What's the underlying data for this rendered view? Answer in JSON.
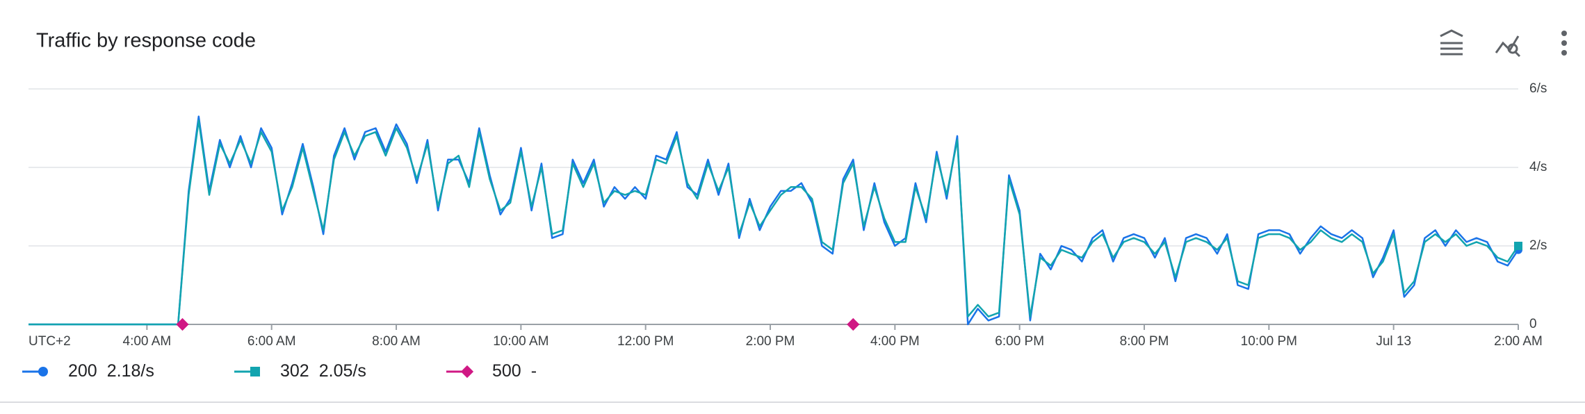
{
  "chart_data": {
    "type": "line",
    "title": "Traffic by response code",
    "timezone": "UTC+2",
    "x": [
      2.1,
      4.5,
      4.67,
      4.83,
      5,
      5.17,
      5.33,
      5.5,
      5.67,
      5.83,
      6,
      6.17,
      6.33,
      6.5,
      6.67,
      6.83,
      7,
      7.17,
      7.33,
      7.5,
      7.67,
      7.83,
      8,
      8.17,
      8.33,
      8.5,
      8.67,
      8.83,
      9,
      9.17,
      9.33,
      9.5,
      9.67,
      9.83,
      10,
      10.17,
      10.33,
      10.5,
      10.67,
      10.83,
      11,
      11.17,
      11.33,
      11.5,
      11.67,
      11.83,
      12,
      12.17,
      12.33,
      12.5,
      12.67,
      12.83,
      13,
      13.17,
      13.33,
      13.5,
      13.67,
      13.83,
      14,
      14.17,
      14.33,
      14.5,
      14.67,
      14.83,
      15,
      15.17,
      15.33,
      15.5,
      15.67,
      15.83,
      16,
      16.17,
      16.33,
      16.5,
      16.67,
      16.83,
      17,
      17.17,
      17.33,
      17.5,
      17.67,
      17.83,
      18,
      18.17,
      18.33,
      18.5,
      18.67,
      18.83,
      19,
      19.17,
      19.33,
      19.5,
      19.67,
      19.83,
      20,
      20.17,
      20.33,
      20.5,
      20.67,
      20.83,
      21,
      21.17,
      21.33,
      21.5,
      21.67,
      21.83,
      22,
      22.17,
      22.33,
      22.5,
      22.67,
      22.83,
      23,
      23.17,
      23.33,
      23.5,
      23.67,
      23.83,
      24,
      24.17,
      24.33,
      24.5,
      24.67,
      24.83,
      25,
      25.17,
      25.33,
      25.5,
      25.67,
      25.83,
      26
    ],
    "series": [
      {
        "name": "200",
        "current": "2.18/s",
        "color": "#1a73e8",
        "marker": "circle",
        "values": [
          0,
          0,
          3.4,
          5.3,
          3.4,
          4.7,
          4.0,
          4.8,
          4.0,
          5.0,
          4.5,
          2.8,
          3.6,
          4.6,
          3.5,
          2.3,
          4.3,
          5.0,
          4.2,
          4.9,
          5.0,
          4.4,
          5.1,
          4.6,
          3.6,
          4.7,
          2.9,
          4.2,
          4.2,
          3.6,
          5.0,
          3.8,
          2.8,
          3.2,
          4.5,
          2.9,
          4.1,
          2.2,
          2.3,
          4.2,
          3.6,
          4.2,
          3.0,
          3.5,
          3.2,
          3.5,
          3.2,
          4.3,
          4.2,
          4.9,
          3.5,
          3.3,
          4.2,
          3.3,
          4.1,
          2.2,
          3.2,
          2.4,
          3.0,
          3.4,
          3.4,
          3.6,
          3.1,
          2.0,
          1.8,
          3.7,
          4.2,
          2.4,
          3.6,
          2.6,
          2.0,
          2.2,
          3.6,
          2.6,
          4.4,
          3.2,
          4.8,
          0,
          0.4,
          0.1,
          0.2,
          3.8,
          2.9,
          0.1,
          1.8,
          1.4,
          2.0,
          1.9,
          1.6,
          2.2,
          2.4,
          1.6,
          2.2,
          2.3,
          2.2,
          1.7,
          2.2,
          1.1,
          2.2,
          2.3,
          2.2,
          1.8,
          2.3,
          1.0,
          0.9,
          2.3,
          2.4,
          2.4,
          2.3,
          1.8,
          2.2,
          2.5,
          2.3,
          2.2,
          2.4,
          2.2,
          1.2,
          1.7,
          2.4,
          0.7,
          1.0,
          2.2,
          2.4,
          2.0,
          2.4,
          2.1,
          2.2,
          2.1,
          1.6,
          1.5,
          1.9
        ]
      },
      {
        "name": "302",
        "current": "2.05/s",
        "color": "#12a4af",
        "marker": "square",
        "values": [
          0,
          0,
          3.3,
          5.2,
          3.3,
          4.6,
          4.1,
          4.7,
          4.1,
          4.9,
          4.4,
          2.9,
          3.5,
          4.5,
          3.4,
          2.4,
          4.2,
          4.9,
          4.3,
          4.8,
          4.9,
          4.3,
          5.0,
          4.5,
          3.7,
          4.6,
          3.0,
          4.1,
          4.3,
          3.5,
          4.9,
          3.7,
          2.9,
          3.1,
          4.4,
          3.0,
          4.0,
          2.3,
          2.4,
          4.1,
          3.5,
          4.1,
          3.1,
          3.4,
          3.3,
          3.4,
          3.3,
          4.2,
          4.1,
          4.8,
          3.6,
          3.2,
          4.1,
          3.4,
          4.0,
          2.3,
          3.1,
          2.5,
          2.9,
          3.3,
          3.5,
          3.5,
          3.2,
          2.1,
          1.9,
          3.6,
          4.1,
          2.5,
          3.5,
          2.7,
          2.1,
          2.1,
          3.5,
          2.7,
          4.3,
          3.3,
          4.7,
          0.2,
          0.5,
          0.2,
          0.3,
          3.7,
          2.8,
          0.2,
          1.7,
          1.5,
          1.9,
          1.8,
          1.7,
          2.1,
          2.3,
          1.7,
          2.1,
          2.2,
          2.1,
          1.8,
          2.1,
          1.2,
          2.1,
          2.2,
          2.1,
          1.9,
          2.2,
          1.1,
          1.0,
          2.2,
          2.3,
          2.3,
          2.2,
          1.9,
          2.1,
          2.4,
          2.2,
          2.1,
          2.3,
          2.1,
          1.3,
          1.6,
          2.3,
          0.8,
          1.1,
          2.1,
          2.3,
          2.1,
          2.3,
          2.0,
          2.1,
          2.0,
          1.7,
          1.6,
          2.0
        ]
      },
      {
        "name": "500",
        "current": "-",
        "color": "#d01884",
        "marker": "diamond",
        "x": [
          4.57,
          15.33
        ],
        "values": [
          0,
          0
        ]
      }
    ],
    "xlim": [
      2.1,
      26
    ],
    "xticks": [
      {
        "value": 4,
        "label": "4:00 AM"
      },
      {
        "value": 6,
        "label": "6:00 AM"
      },
      {
        "value": 8,
        "label": "8:00 AM"
      },
      {
        "value": 10,
        "label": "10:00 AM"
      },
      {
        "value": 12,
        "label": "12:00 PM"
      },
      {
        "value": 14,
        "label": "2:00 PM"
      },
      {
        "value": 16,
        "label": "4:00 PM"
      },
      {
        "value": 18,
        "label": "6:00 PM"
      },
      {
        "value": 20,
        "label": "8:00 PM"
      },
      {
        "value": 22,
        "label": "10:00 PM"
      },
      {
        "value": 24,
        "label": "Jul 13"
      },
      {
        "value": 26,
        "label": "2:00 AM"
      }
    ],
    "ylim": [
      0,
      6
    ],
    "yticks": [
      0,
      {
        "value": 2,
        "label": "2/s"
      },
      {
        "value": 4,
        "label": "4/s"
      },
      {
        "value": 6,
        "label": "6/s"
      }
    ],
    "grid": true
  }
}
